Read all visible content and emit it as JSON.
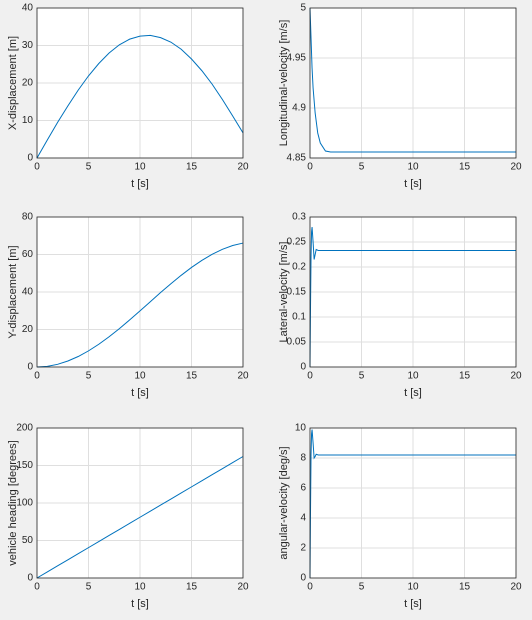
{
  "chart_data": [
    {
      "type": "line",
      "xlabel": "t [s]",
      "ylabel": "X-displacement [m]",
      "color": "#0072bd",
      "grid": true,
      "xlim": [
        0,
        20
      ],
      "xticks": [
        0,
        5,
        10,
        15,
        20
      ],
      "ylim": [
        0,
        40
      ],
      "yticks": [
        0,
        10,
        20,
        30,
        40
      ],
      "x": [
        0,
        1,
        2,
        3,
        4,
        5,
        6,
        7,
        8,
        9,
        10,
        11,
        12,
        13,
        14,
        15,
        16,
        17,
        18,
        19,
        20
      ],
      "values": [
        0,
        4.8,
        9.5,
        13.9,
        18.1,
        21.9,
        25.2,
        28.0,
        30.2,
        31.7,
        32.5,
        32.7,
        32.1,
        30.9,
        29.0,
        26.4,
        23.3,
        19.7,
        15.6,
        11.2,
        6.7
      ]
    },
    {
      "type": "line",
      "xlabel": "t [s]",
      "ylabel": "Longitudinal-velocity [m/s]",
      "color": "#0072bd",
      "grid": true,
      "xlim": [
        0,
        20
      ],
      "xticks": [
        0,
        5,
        10,
        15,
        20
      ],
      "ylim": [
        4.85,
        5
      ],
      "yticks": [
        4.85,
        4.9,
        4.95,
        5
      ],
      "x": [
        0,
        0.1,
        0.2,
        0.3,
        0.5,
        0.75,
        1,
        1.5,
        2,
        20
      ],
      "values": [
        5,
        4.97,
        4.94,
        4.92,
        4.895,
        4.875,
        4.865,
        4.857,
        4.856,
        4.856
      ]
    },
    {
      "type": "line",
      "xlabel": "t [s]",
      "ylabel": "Y-displacement [m]",
      "color": "#0072bd",
      "grid": true,
      "xlim": [
        0,
        20
      ],
      "xticks": [
        0,
        5,
        10,
        15,
        20
      ],
      "ylim": [
        0,
        80
      ],
      "yticks": [
        0,
        20,
        40,
        60,
        80
      ],
      "x": [
        0,
        1,
        2,
        3,
        4,
        5,
        6,
        7,
        8,
        9,
        10,
        11,
        12,
        13,
        14,
        15,
        16,
        17,
        18,
        19,
        20
      ],
      "values": [
        0,
        0.36,
        1.43,
        3.19,
        5.59,
        8.6,
        12.14,
        16.14,
        20.49,
        25.12,
        29.92,
        34.8,
        39.71,
        44.4,
        48.91,
        53.09,
        56.85,
        60.1,
        62.76,
        64.78,
        66.1
      ]
    },
    {
      "type": "line",
      "xlabel": "t [s]",
      "ylabel": "Lateral-velocity [m/s]",
      "color": "#0072bd",
      "grid": true,
      "xlim": [
        0,
        20
      ],
      "xticks": [
        0,
        5,
        10,
        15,
        20
      ],
      "ylim": [
        0,
        0.3
      ],
      "yticks": [
        0,
        0.05,
        0.1,
        0.15,
        0.2,
        0.25,
        0.3
      ],
      "x": [
        0,
        0.05,
        0.1,
        0.15,
        0.2,
        0.3,
        0.4,
        0.5,
        0.6,
        0.8,
        20
      ],
      "values": [
        0,
        0.12,
        0.22,
        0.27,
        0.28,
        0.25,
        0.215,
        0.225,
        0.235,
        0.233,
        0.233
      ]
    },
    {
      "type": "line",
      "xlabel": "t [s]",
      "ylabel": "vehicle heading [degrees]",
      "color": "#0072bd",
      "grid": true,
      "xlim": [
        0,
        20
      ],
      "xticks": [
        0,
        5,
        10,
        15,
        20
      ],
      "ylim": [
        0,
        200
      ],
      "yticks": [
        0,
        50,
        100,
        150,
        200
      ],
      "x": [
        0,
        1,
        2,
        3,
        4,
        5,
        6,
        7,
        8,
        9,
        10,
        11,
        12,
        13,
        14,
        15,
        16,
        17,
        18,
        19,
        20
      ],
      "values": [
        0,
        8.1,
        16.2,
        24.3,
        32.4,
        40.5,
        48.6,
        56.7,
        64.8,
        72.9,
        81,
        89.1,
        97.2,
        105.3,
        113.4,
        121.5,
        129.6,
        137.7,
        145.8,
        153.9,
        162
      ]
    },
    {
      "type": "line",
      "xlabel": "t [s]",
      "ylabel": "angular-velocity [deg/s]",
      "color": "#0072bd",
      "grid": true,
      "xlim": [
        0,
        20
      ],
      "xticks": [
        0,
        5,
        10,
        15,
        20
      ],
      "ylim": [
        0,
        10
      ],
      "yticks": [
        0,
        2,
        4,
        6,
        8,
        10
      ],
      "x": [
        0,
        0.05,
        0.1,
        0.15,
        0.2,
        0.3,
        0.4,
        0.5,
        0.6,
        0.8,
        20
      ],
      "values": [
        0,
        4.5,
        8.2,
        9.6,
        9.9,
        9.0,
        8.0,
        8.1,
        8.25,
        8.2,
        8.2
      ]
    }
  ]
}
